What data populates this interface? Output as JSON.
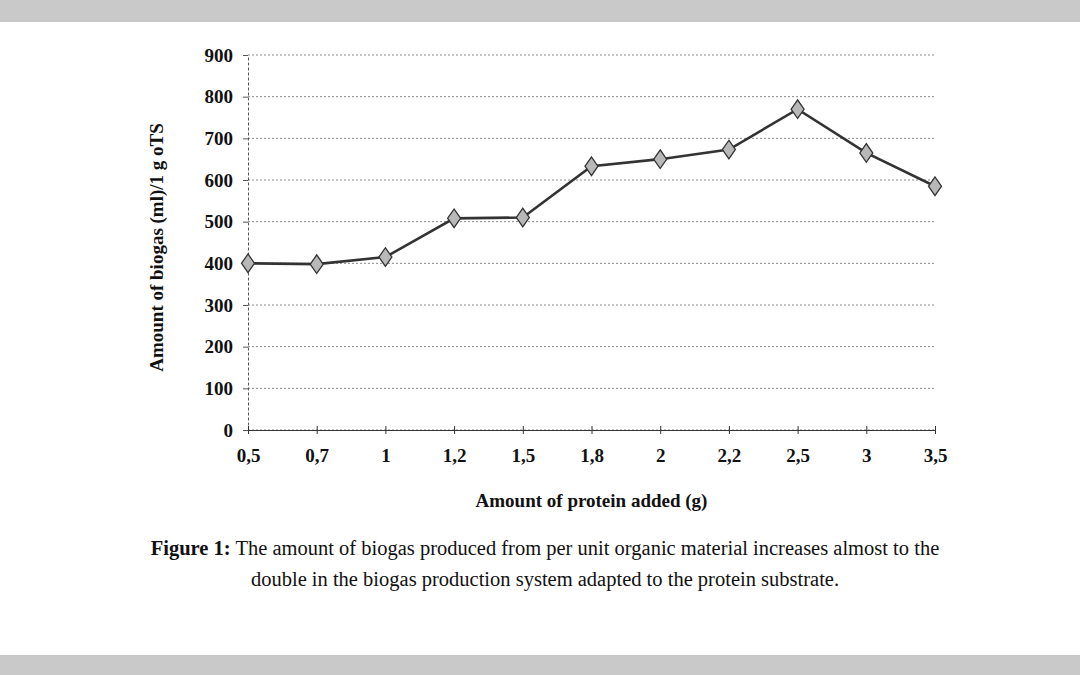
{
  "chart_data": {
    "type": "line",
    "title": "Figure 1:",
    "subtitle": "The amount of biogas produced from per unit organic material increases almost to the double in the biogas production system adapted to the protein substrate.",
    "x_label": "Amount of protein added (g)",
    "y_label": "Amount of biogas (ml)/1 g oTS",
    "categories": [
      "0,5",
      "0,7",
      "1",
      "1,2",
      "1,5",
      "1,8",
      "2",
      "2,2",
      "2,5",
      "3",
      "3,5"
    ],
    "values": [
      400,
      398,
      415,
      508,
      510,
      633,
      650,
      673,
      770,
      665,
      585
    ],
    "color": "#333333",
    "marker": "diamond",
    "ylim": [
      0,
      900
    ],
    "yticks": [
      0,
      100,
      200,
      300,
      400,
      500,
      600,
      700,
      800,
      900
    ],
    "grid": true
  }
}
